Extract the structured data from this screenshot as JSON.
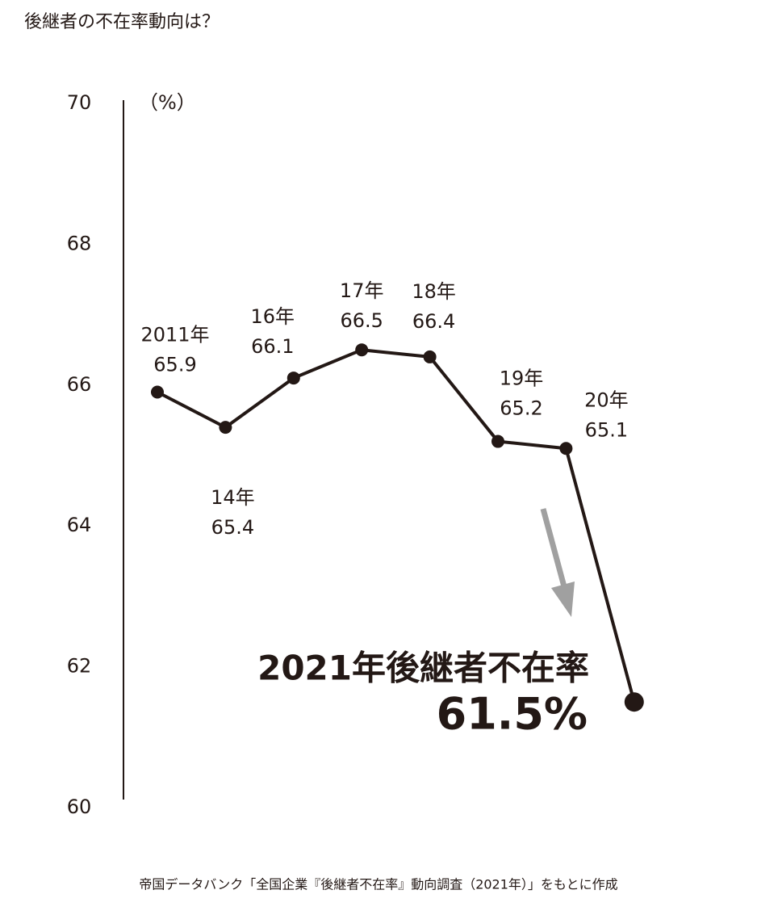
{
  "chart_data": {
    "type": "line",
    "title": "後継者の不在率動向は？",
    "y_label": "（%）",
    "categories": [
      "2011年",
      "14年",
      "16年",
      "17年",
      "18年",
      "19年",
      "20年",
      null
    ],
    "series": [
      {
        "name": null,
        "color": "#231815",
        "values": [
          65.9,
          65.4,
          66.1,
          66.5,
          66.4,
          65.2,
          65.1,
          61.5
        ],
        "value_labels": [
          "65.9",
          "65.4",
          "66.1",
          "66.5",
          "66.4",
          "65.2",
          "65.1",
          "61.5%"
        ]
      }
    ],
    "annotation": "2021年後継者不在率",
    "ylim": [
      60,
      70
    ],
    "yticks": [
      60,
      62,
      64,
      66,
      68,
      70
    ],
    "source": "帝国データバンク「全国企業『後継者不在率』動向調査（2021年）」をもとに作成"
  }
}
